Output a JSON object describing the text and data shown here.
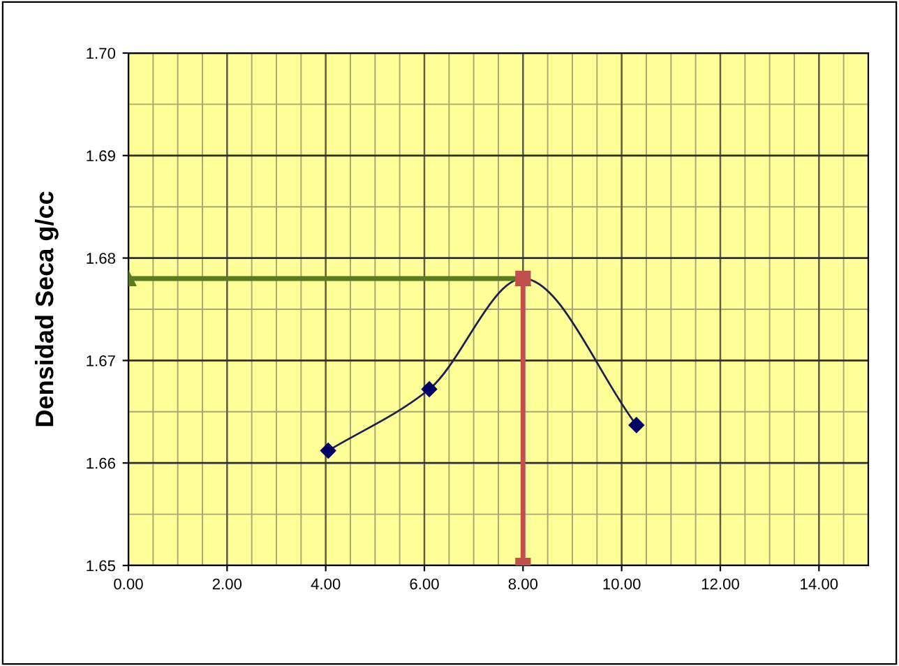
{
  "chart_data": {
    "type": "line",
    "ylabel": "Densidad Seca g/cc",
    "series": [
      {
        "x": [
          4.05,
          6.1,
          8.0,
          10.3
        ],
        "values": [
          1.6612,
          1.6672,
          1.678,
          1.6637
        ],
        "color": "#1f1f4f",
        "marker": "none"
      },
      {
        "type": "scatter",
        "x": [
          4.05,
          6.1,
          10.3
        ],
        "values": [
          1.6612,
          1.6672,
          1.6637
        ],
        "color": "#000066",
        "marker": "diamond"
      },
      {
        "x": [
          0.0,
          8.0
        ],
        "values": [
          1.678,
          1.678
        ],
        "color": "#5a7a20",
        "marker": "triangle"
      },
      {
        "x": [
          8.0,
          8.0
        ],
        "values": [
          1.65,
          1.678
        ],
        "color": "#c0504d",
        "marker": "square"
      }
    ],
    "xlim": [
      0,
      15
    ],
    "xticks": [
      {
        "value": 0,
        "label": "0.00"
      },
      {
        "value": 2,
        "label": "2.00"
      },
      {
        "value": 4,
        "label": "4.00"
      },
      {
        "value": 6,
        "label": "6.00"
      },
      {
        "value": 8,
        "label": "8.00"
      },
      {
        "value": 10,
        "label": "10.00"
      },
      {
        "value": 12,
        "label": "12.00"
      },
      {
        "value": 14,
        "label": "14.00"
      }
    ],
    "ylim": [
      1.65,
      1.7
    ],
    "yticks": [
      {
        "value": 1.65,
        "label": "1.65"
      },
      {
        "value": 1.66,
        "label": "1.66"
      },
      {
        "value": 1.67,
        "label": "1.67"
      },
      {
        "value": 1.68,
        "label": "1.68"
      },
      {
        "value": 1.69,
        "label": "1.69"
      },
      {
        "value": 1.7,
        "label": "1.70"
      }
    ],
    "grid": true
  }
}
